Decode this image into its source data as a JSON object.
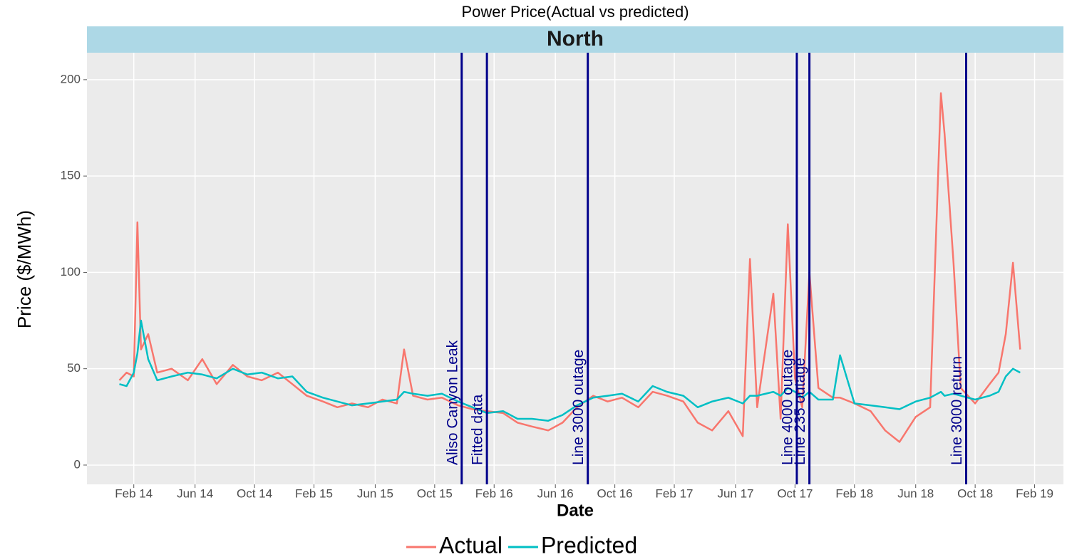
{
  "chart_data": {
    "type": "line",
    "title": "Power Price(Actual vs predicted)",
    "panel": "North",
    "x_label": "Date",
    "y_label": "Price ($/MWh)",
    "x": [
      2014.0,
      2014.04,
      2014.08,
      2014.1,
      2014.12,
      2014.16,
      2014.21,
      2014.29,
      2014.38,
      2014.46,
      2014.54,
      2014.63,
      2014.71,
      2014.79,
      2014.88,
      2014.96,
      2015.04,
      2015.13,
      2015.21,
      2015.29,
      2015.38,
      2015.46,
      2015.54,
      2015.58,
      2015.63,
      2015.71,
      2015.79,
      2015.88,
      2015.96,
      2016.04,
      2016.13,
      2016.21,
      2016.29,
      2016.38,
      2016.46,
      2016.54,
      2016.63,
      2016.71,
      2016.79,
      2016.88,
      2016.96,
      2017.04,
      2017.13,
      2017.21,
      2017.29,
      2017.38,
      2017.46,
      2017.5,
      2017.54,
      2017.63,
      2017.67,
      2017.71,
      2017.75,
      2017.79,
      2017.83,
      2017.88,
      2017.96,
      2018.0,
      2018.08,
      2018.17,
      2018.25,
      2018.33,
      2018.42,
      2018.5,
      2018.56,
      2018.58,
      2018.63,
      2018.67,
      2018.75,
      2018.83,
      2018.88,
      2018.92,
      2018.96,
      2019.0
    ],
    "series": [
      {
        "name": "Actual",
        "color": "#F8766D",
        "values": [
          44,
          48,
          46,
          126,
          60,
          68,
          48,
          50,
          44,
          55,
          42,
          52,
          46,
          44,
          48,
          42,
          36,
          33,
          30,
          32,
          30,
          34,
          32,
          60,
          36,
          34,
          35,
          31,
          29,
          28,
          27,
          22,
          20,
          18,
          22,
          30,
          36,
          33,
          35,
          30,
          38,
          36,
          33,
          22,
          18,
          28,
          15,
          107,
          30,
          89,
          24,
          125,
          45,
          30,
          100,
          40,
          35,
          35,
          32,
          28,
          18,
          12,
          25,
          30,
          193,
          172,
          105,
          40,
          32,
          42,
          48,
          68,
          105,
          60
        ]
      },
      {
        "name": "Predicted",
        "color": "#00BFC4",
        "values": [
          42,
          41,
          48,
          58,
          75,
          55,
          44,
          46,
          48,
          47,
          45,
          50,
          47,
          48,
          45,
          46,
          38,
          35,
          33,
          31,
          32,
          33,
          34,
          38,
          37,
          36,
          37,
          33,
          30,
          27,
          28,
          24,
          24,
          23,
          26,
          31,
          35,
          36,
          37,
          33,
          41,
          38,
          36,
          30,
          33,
          35,
          32,
          36,
          36,
          38,
          36,
          40,
          38,
          35,
          38,
          34,
          34,
          57,
          32,
          31,
          30,
          29,
          33,
          35,
          38,
          36,
          37,
          36,
          34,
          36,
          38,
          46,
          50,
          48
        ]
      }
    ],
    "events": [
      {
        "x": 2015.9,
        "label": "Aliso Canyon Leak"
      },
      {
        "x": 2016.04,
        "label": "Fitted data"
      },
      {
        "x": 2016.6,
        "label": "Line 3000 outage"
      },
      {
        "x": 2017.76,
        "label": "Line 4000 outage"
      },
      {
        "x": 2017.83,
        "label": "Line 235 outage"
      },
      {
        "x": 2018.7,
        "label": "Line 3000 return"
      }
    ],
    "event_color": "#00008B",
    "xlim": [
      2013.82,
      2019.24
    ],
    "xticks": [
      {
        "value": 2014.08,
        "label": "Feb 14"
      },
      {
        "value": 2014.42,
        "label": "Jun 14"
      },
      {
        "value": 2014.75,
        "label": "Oct 14"
      },
      {
        "value": 2015.08,
        "label": "Feb 15"
      },
      {
        "value": 2015.42,
        "label": "Jun 15"
      },
      {
        "value": 2015.75,
        "label": "Oct 15"
      },
      {
        "value": 2016.08,
        "label": "Feb 16"
      },
      {
        "value": 2016.42,
        "label": "Jun 16"
      },
      {
        "value": 2016.75,
        "label": "Oct 16"
      },
      {
        "value": 2017.08,
        "label": "Feb 17"
      },
      {
        "value": 2017.42,
        "label": "Jun 17"
      },
      {
        "value": 2017.75,
        "label": "Oct 17"
      },
      {
        "value": 2018.08,
        "label": "Feb 18"
      },
      {
        "value": 2018.42,
        "label": "Jun 18"
      },
      {
        "value": 2018.75,
        "label": "Oct 18"
      },
      {
        "value": 2019.08,
        "label": "Feb 19"
      }
    ],
    "ylim": [
      -10,
      214
    ],
    "yticks": [
      0,
      50,
      100,
      150,
      200
    ],
    "grid": true,
    "legend": "bottom"
  }
}
